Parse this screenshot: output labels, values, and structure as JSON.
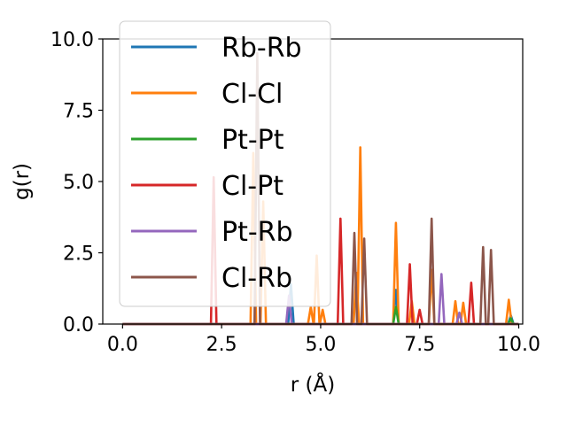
{
  "chart_data": {
    "type": "line",
    "xlabel": "r (Å)",
    "ylabel": "g(r)",
    "xlim": [
      -0.5,
      10.1
    ],
    "ylim": [
      0,
      10
    ],
    "xticks": [
      "0.0",
      "2.5",
      "5.0",
      "7.5",
      "10.0"
    ],
    "xtick_values": [
      0,
      2.5,
      5,
      7.5,
      10
    ],
    "yticks": [
      "0.0",
      "2.5",
      "5.0",
      "7.5",
      "10.0"
    ],
    "ytick_values": [
      0,
      2.5,
      5,
      7.5,
      10
    ],
    "legend_position": "upper-left",
    "grid": false,
    "series": [
      {
        "name": "Rb-Rb",
        "color": "#1f77b4",
        "peaks": [
          [
            4.25,
            1.4
          ],
          [
            6.9,
            1.2
          ],
          [
            9.8,
            0.3
          ]
        ]
      },
      {
        "name": "Cl-Cl",
        "color": "#ff7f0e",
        "peaks": [
          [
            3.3,
            6.0
          ],
          [
            3.55,
            4.3
          ],
          [
            4.75,
            0.6
          ],
          [
            4.9,
            2.4
          ],
          [
            5.05,
            0.5
          ],
          [
            5.9,
            1.8
          ],
          [
            6.0,
            6.2
          ],
          [
            6.9,
            3.55
          ],
          [
            7.3,
            0.8
          ],
          [
            7.8,
            1.9
          ],
          [
            8.4,
            0.8
          ],
          [
            8.6,
            0.75
          ],
          [
            9.75,
            0.85
          ]
        ]
      },
      {
        "name": "Pt-Pt",
        "color": "#2ca02c",
        "peaks": [
          [
            6.9,
            0.6
          ],
          [
            9.8,
            0.2
          ]
        ]
      },
      {
        "name": "Cl-Pt",
        "color": "#d62728",
        "peaks": [
          [
            2.3,
            5.15
          ],
          [
            5.5,
            3.7
          ],
          [
            7.25,
            2.1
          ],
          [
            7.5,
            0.5
          ],
          [
            8.8,
            1.45
          ]
        ]
      },
      {
        "name": "Pt-Rb",
        "color": "#9467bd",
        "peaks": [
          [
            4.2,
            1.0
          ],
          [
            8.05,
            1.75
          ],
          [
            8.5,
            0.4
          ]
        ]
      },
      {
        "name": "Cl-Rb",
        "color": "#8c564b",
        "peaks": [
          [
            3.4,
            9.5
          ],
          [
            5.85,
            3.2
          ],
          [
            6.1,
            3.0
          ],
          [
            7.8,
            3.7
          ],
          [
            9.1,
            2.7
          ],
          [
            9.3,
            2.6
          ]
        ]
      }
    ]
  }
}
